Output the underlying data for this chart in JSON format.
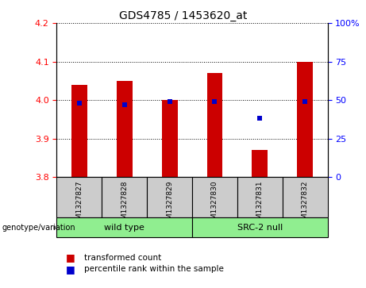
{
  "title": "GDS4785 / 1453620_at",
  "samples": [
    "GSM1327827",
    "GSM1327828",
    "GSM1327829",
    "GSM1327830",
    "GSM1327831",
    "GSM1327832"
  ],
  "red_values": [
    4.04,
    4.05,
    4.0,
    4.07,
    3.87,
    4.1
  ],
  "blue_values": [
    48,
    47,
    49,
    49,
    38,
    49
  ],
  "ylim_left": [
    3.8,
    4.2
  ],
  "ylim_right": [
    0,
    100
  ],
  "yticks_left": [
    3.8,
    3.9,
    4.0,
    4.1,
    4.2
  ],
  "yticks_right": [
    0,
    25,
    50,
    75,
    100
  ],
  "group_labels": [
    "wild type",
    "SRC-2 null"
  ],
  "group_color": "#90ee90",
  "genotype_label": "genotype/variation",
  "legend_red_label": "transformed count",
  "legend_blue_label": "percentile rank within the sample",
  "bar_color": "#cc0000",
  "dot_color": "#0000cc",
  "sample_box_color": "#cccccc",
  "bar_width": 0.35
}
